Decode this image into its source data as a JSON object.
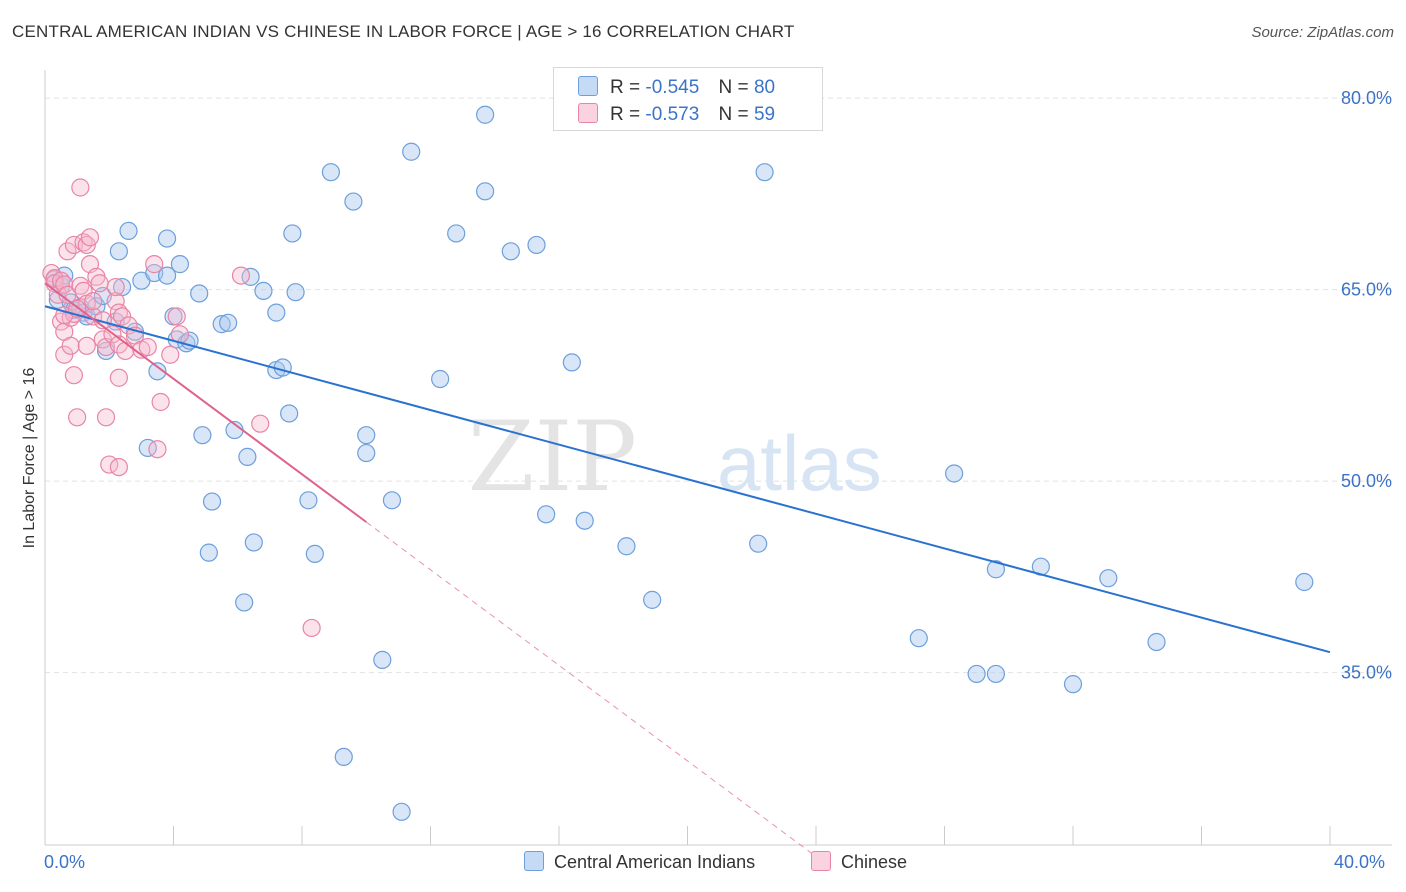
{
  "title": "CENTRAL AMERICAN INDIAN VS CHINESE IN LABOR FORCE | AGE > 16 CORRELATION CHART",
  "source": "Source: ZipAtlas.com",
  "watermark": {
    "zip": "ZIP",
    "atlas": "atlas"
  },
  "legend": {
    "rows": [
      {
        "r_label": "R =",
        "r_value": "-0.545",
        "n_label": "N =",
        "n_value": "80"
      },
      {
        "r_label": "R =",
        "r_value": "-0.573",
        "n_label": "N =",
        "n_value": "59"
      }
    ]
  },
  "bottom_legend": [
    "Central American Indians",
    "Chinese"
  ],
  "x_tick_labels": {
    "left": "0.0%",
    "right": "40.0%"
  },
  "chart_data": {
    "type": "scatter",
    "title": "CENTRAL AMERICAN INDIAN VS CHINESE IN LABOR FORCE | AGE > 16 CORRELATION CHART",
    "xlabel": "",
    "ylabel": "In Labor Force | Age > 16",
    "xlim": [
      0,
      40
    ],
    "ylim": [
      20,
      82
    ],
    "y_ticks": [
      {
        "value": 80,
        "label": "80.0%"
      },
      {
        "value": 65,
        "label": "65.0%"
      },
      {
        "value": 50,
        "label": "50.0%"
      },
      {
        "value": 35,
        "label": "35.0%"
      }
    ],
    "grid": true,
    "legend_position": "top-center",
    "colors": {
      "blue_fill": "#a9c8f0",
      "blue_edge": "#6d9fdc",
      "blue_line": "#2a72d0",
      "pink_fill": "#f6b8cc",
      "pink_edge": "#e985a6",
      "pink_line": "#e0628c"
    },
    "series": [
      {
        "name": "Central American Indians",
        "color": "#6d9fdc",
        "r": -0.545,
        "n": 80,
        "trend": {
          "x": [
            0,
            40
          ],
          "y": [
            63.7,
            36.6
          ]
        },
        "points": [
          [
            0.3,
            65.8
          ],
          [
            0.4,
            64.2
          ],
          [
            0.5,
            65.3
          ],
          [
            0.6,
            66.1
          ],
          [
            0.8,
            64.0
          ],
          [
            0.9,
            63.4
          ],
          [
            1.1,
            63.6
          ],
          [
            1.2,
            63.2
          ],
          [
            1.3,
            62.9
          ],
          [
            1.6,
            63.7
          ],
          [
            1.8,
            64.5
          ],
          [
            1.9,
            60.2
          ],
          [
            2.2,
            62.5
          ],
          [
            2.3,
            68.0
          ],
          [
            2.4,
            65.2
          ],
          [
            2.6,
            69.6
          ],
          [
            2.8,
            61.7
          ],
          [
            3.0,
            65.7
          ],
          [
            3.2,
            52.6
          ],
          [
            3.4,
            66.3
          ],
          [
            3.5,
            58.6
          ],
          [
            3.8,
            66.1
          ],
          [
            3.8,
            69.0
          ],
          [
            4.0,
            62.9
          ],
          [
            4.1,
            61.1
          ],
          [
            4.2,
            67.0
          ],
          [
            4.4,
            60.8
          ],
          [
            4.5,
            61.0
          ],
          [
            4.8,
            64.7
          ],
          [
            4.9,
            53.6
          ],
          [
            5.2,
            48.4
          ],
          [
            5.1,
            44.4
          ],
          [
            5.5,
            62.3
          ],
          [
            5.7,
            62.4
          ],
          [
            5.9,
            54.0
          ],
          [
            6.2,
            40.5
          ],
          [
            6.3,
            51.9
          ],
          [
            6.4,
            66.0
          ],
          [
            6.5,
            45.2
          ],
          [
            6.8,
            64.9
          ],
          [
            7.2,
            63.2
          ],
          [
            7.2,
            58.7
          ],
          [
            7.4,
            58.9
          ],
          [
            7.6,
            55.3
          ],
          [
            7.7,
            69.4
          ],
          [
            7.8,
            64.8
          ],
          [
            8.2,
            48.5
          ],
          [
            8.4,
            44.3
          ],
          [
            8.9,
            74.2
          ],
          [
            9.3,
            28.4
          ],
          [
            9.6,
            71.9
          ],
          [
            10.0,
            52.2
          ],
          [
            10.0,
            53.6
          ],
          [
            10.5,
            36.0
          ],
          [
            10.8,
            48.5
          ],
          [
            11.1,
            24.1
          ],
          [
            11.4,
            75.8
          ],
          [
            12.3,
            58.0
          ],
          [
            12.8,
            69.4
          ],
          [
            13.7,
            78.7
          ],
          [
            13.7,
            72.7
          ],
          [
            14.5,
            68.0
          ],
          [
            15.3,
            68.5
          ],
          [
            15.6,
            47.4
          ],
          [
            16.4,
            59.3
          ],
          [
            16.8,
            46.9
          ],
          [
            18.1,
            44.9
          ],
          [
            18.9,
            40.7
          ],
          [
            22.4,
            74.2
          ],
          [
            22.2,
            45.1
          ],
          [
            27.2,
            37.7
          ],
          [
            28.3,
            50.6
          ],
          [
            29.0,
            34.9
          ],
          [
            29.6,
            34.9
          ],
          [
            29.6,
            43.1
          ],
          [
            31.0,
            43.3
          ],
          [
            32.0,
            34.1
          ],
          [
            33.1,
            42.4
          ],
          [
            34.6,
            37.4
          ],
          [
            39.2,
            42.1
          ]
        ]
      },
      {
        "name": "Chinese",
        "color": "#e985a6",
        "r": -0.573,
        "n": 59,
        "trend": {
          "x": [
            0,
            10
          ],
          "y": [
            65.5,
            46.8
          ]
        },
        "trend_extension": {
          "x": [
            10,
            24
          ],
          "y": [
            46.8,
            20.6
          ]
        },
        "points": [
          [
            0.2,
            66.3
          ],
          [
            0.3,
            65.9
          ],
          [
            0.3,
            65.5
          ],
          [
            0.4,
            64.6
          ],
          [
            0.5,
            65.7
          ],
          [
            0.6,
            65.4
          ],
          [
            0.7,
            64.6
          ],
          [
            0.5,
            62.5
          ],
          [
            0.6,
            61.7
          ],
          [
            0.6,
            59.9
          ],
          [
            0.7,
            68.0
          ],
          [
            0.8,
            62.8
          ],
          [
            0.8,
            60.6
          ],
          [
            0.9,
            63.1
          ],
          [
            0.9,
            58.3
          ],
          [
            1.0,
            55.0
          ],
          [
            0.9,
            68.5
          ],
          [
            1.1,
            65.3
          ],
          [
            1.2,
            68.7
          ],
          [
            1.1,
            73.0
          ],
          [
            1.2,
            64.9
          ],
          [
            1.3,
            68.5
          ],
          [
            1.3,
            63.9
          ],
          [
            1.3,
            60.6
          ],
          [
            1.4,
            67.0
          ],
          [
            1.4,
            69.1
          ],
          [
            1.5,
            62.9
          ],
          [
            1.5,
            64.1
          ],
          [
            1.6,
            66.0
          ],
          [
            1.7,
            65.5
          ],
          [
            1.8,
            61.1
          ],
          [
            1.8,
            62.6
          ],
          [
            1.9,
            60.5
          ],
          [
            1.9,
            55.0
          ],
          [
            2.0,
            51.3
          ],
          [
            2.1,
            61.5
          ],
          [
            2.2,
            64.1
          ],
          [
            2.2,
            65.2
          ],
          [
            2.3,
            63.2
          ],
          [
            2.3,
            60.7
          ],
          [
            2.3,
            58.1
          ],
          [
            2.3,
            51.1
          ],
          [
            2.4,
            62.9
          ],
          [
            2.5,
            60.2
          ],
          [
            2.6,
            62.2
          ],
          [
            2.8,
            61.4
          ],
          [
            3.0,
            60.3
          ],
          [
            3.2,
            60.5
          ],
          [
            3.4,
            67.0
          ],
          [
            3.5,
            52.5
          ],
          [
            3.6,
            56.2
          ],
          [
            3.9,
            59.9
          ],
          [
            4.1,
            62.9
          ],
          [
            4.2,
            61.5
          ],
          [
            6.1,
            66.1
          ],
          [
            6.7,
            54.5
          ],
          [
            8.3,
            38.5
          ],
          [
            0.6,
            63.0
          ],
          [
            1.0,
            63.5
          ]
        ]
      }
    ]
  }
}
